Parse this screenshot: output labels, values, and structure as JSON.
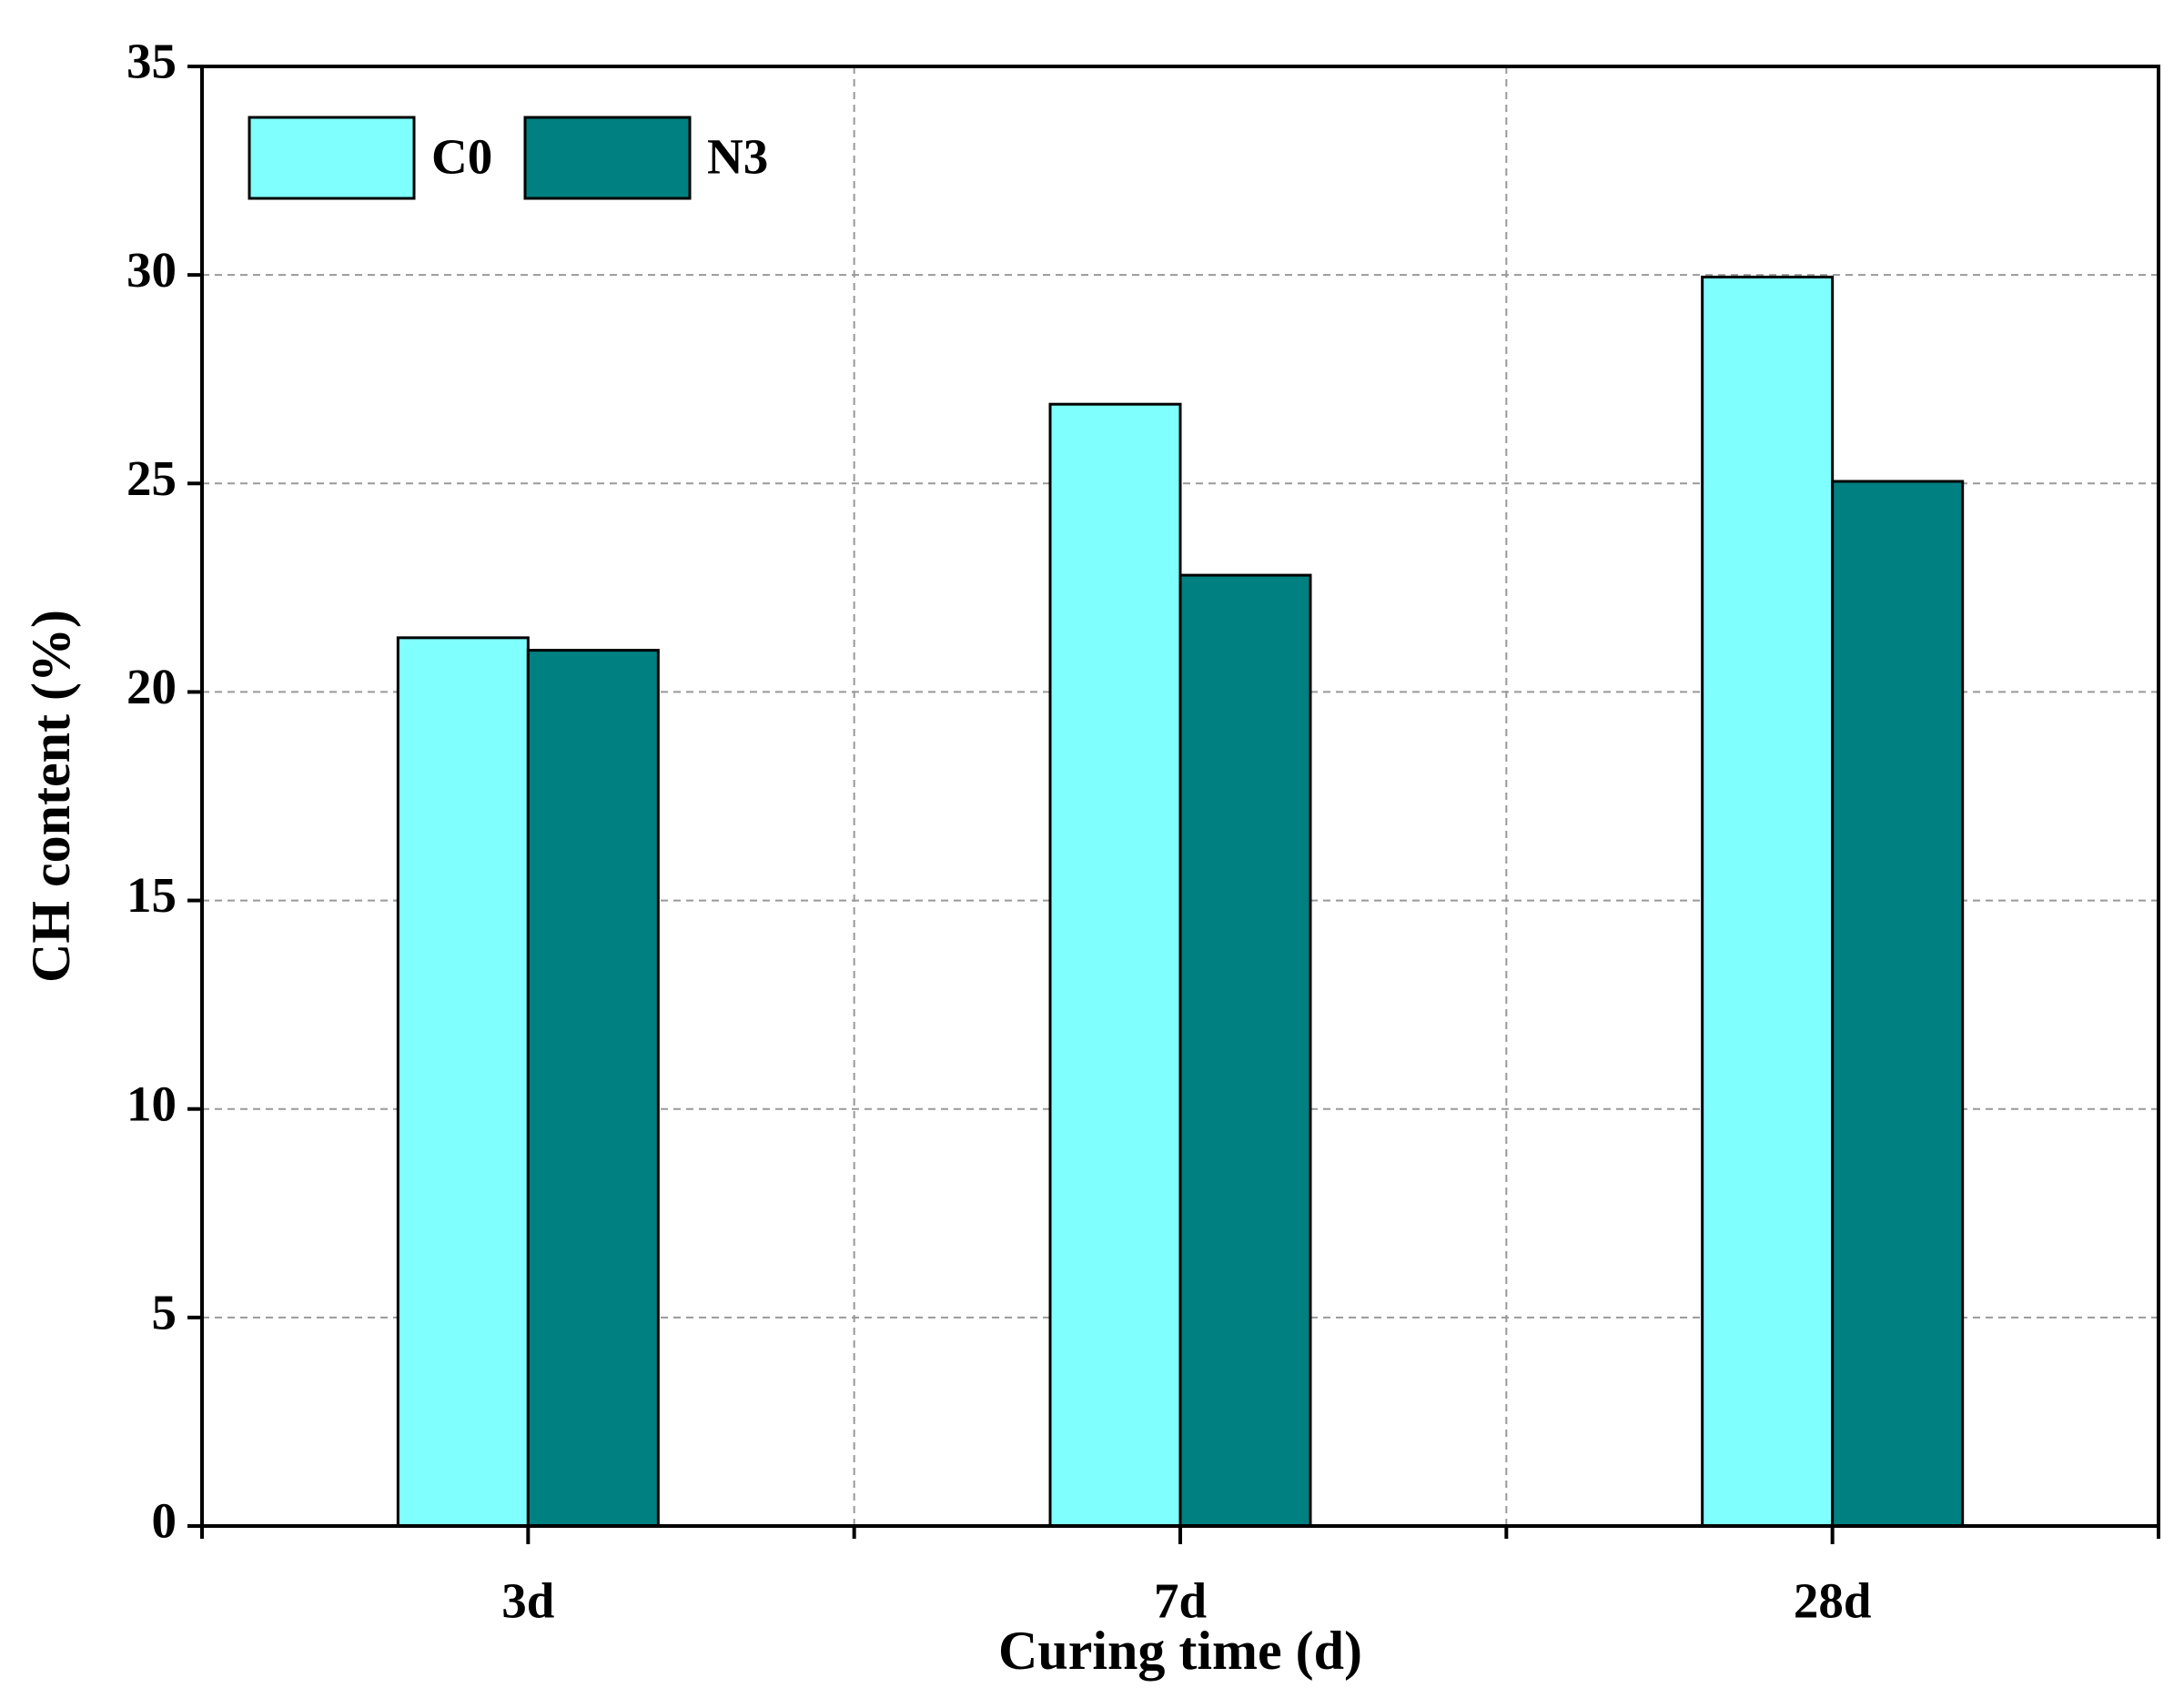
{
  "chart_data": {
    "type": "bar",
    "x_label": "Curing time (d)",
    "y_label": "CH content (%)",
    "categories": [
      "3d",
      "7d",
      "28d"
    ],
    "series": [
      {
        "name": "C0",
        "color": "#80ffff",
        "values": [
          21.3,
          26.9,
          29.95
        ]
      },
      {
        "name": "N3",
        "color": "#008080",
        "values": [
          21.0,
          22.8,
          25.05
        ]
      }
    ],
    "ylim": [
      0,
      35
    ],
    "yticks": [
      0,
      5,
      10,
      15,
      20,
      25,
      30,
      35
    ],
    "grid": true,
    "legend": "upper left"
  }
}
